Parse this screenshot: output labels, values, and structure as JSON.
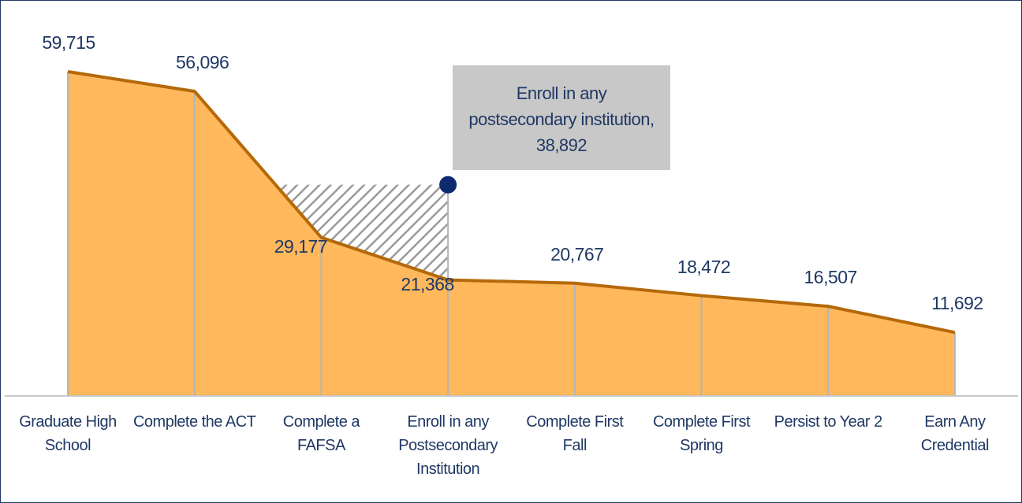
{
  "chart_data": {
    "type": "area",
    "categories": [
      "Graduate High School",
      "Complete the ACT",
      "Complete a FAFSA",
      "Enroll in any Postsecondary Institution",
      "Complete First Fall",
      "Complete First Spring",
      "Persist to Year 2",
      "Earn Any Credential"
    ],
    "values": [
      59715,
      56096,
      29177,
      21368,
      20767,
      18472,
      16507,
      11692
    ],
    "value_labels": [
      "59,715",
      "56,096",
      "29,177",
      "21,368",
      "20,767",
      "18,472",
      "16,507",
      "11,692"
    ],
    "color": "#ffb85c",
    "line_color": "#b5690a",
    "annotation": {
      "category": 3,
      "text": "Enroll in any postsecondary institution,",
      "value": 38892,
      "value_label": "38,892",
      "color": "#0d2a6e"
    }
  }
}
